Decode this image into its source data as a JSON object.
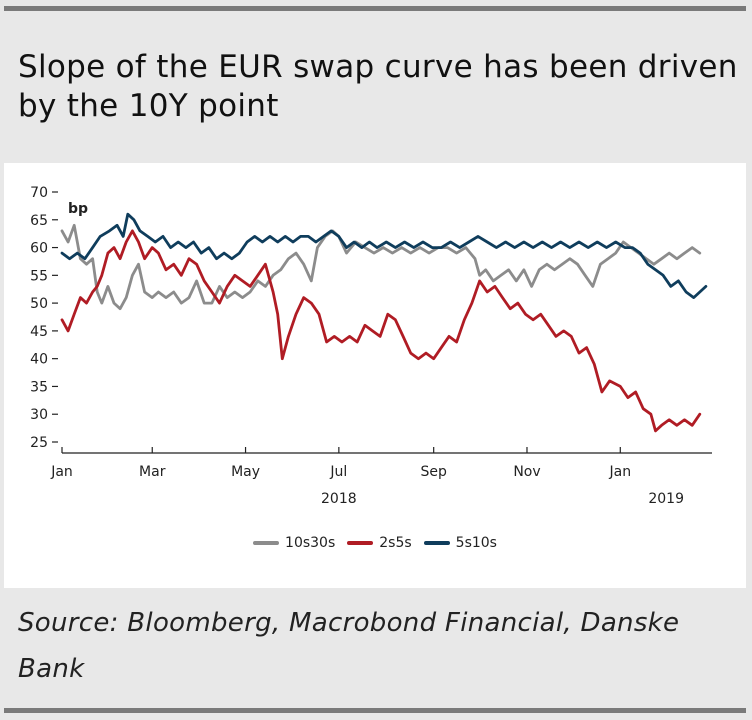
{
  "title": "Slope of the EUR swap curve has been driven by the 10Y point",
  "source": "Source: Bloomberg, Macrobond Financial, Danske Bank",
  "chart_data": {
    "type": "line",
    "ylabel": "bp",
    "ylim": [
      25,
      70
    ],
    "yticks": [
      70,
      65,
      60,
      55,
      50,
      45,
      40,
      35,
      30,
      25
    ],
    "xlim": [
      "2018-01-01",
      "2019-02-28"
    ],
    "xticks": [
      {
        "label": "Jan",
        "date": "2018-01-01"
      },
      {
        "label": "Mar",
        "date": "2018-03-01"
      },
      {
        "label": "May",
        "date": "2018-05-01"
      },
      {
        "label": "Jul",
        "date": "2018-07-01"
      },
      {
        "label": "Sep",
        "date": "2018-09-01"
      },
      {
        "label": "Nov",
        "date": "2018-11-01"
      },
      {
        "label": "Jan",
        "date": "2019-01-01"
      }
    ],
    "year_labels": [
      {
        "label": "2018",
        "date": "2018-07-01"
      },
      {
        "label": "2019",
        "date": "2019-01-31"
      }
    ],
    "grid": false,
    "legend_position": "bottom",
    "series": [
      {
        "name": "10s30s",
        "color": "#8c8c8c",
        "points": [
          [
            "2018-01-01",
            63
          ],
          [
            "2018-01-05",
            61
          ],
          [
            "2018-01-09",
            64
          ],
          [
            "2018-01-13",
            58
          ],
          [
            "2018-01-17",
            57
          ],
          [
            "2018-01-21",
            58
          ],
          [
            "2018-01-24",
            52
          ],
          [
            "2018-01-27",
            50
          ],
          [
            "2018-01-31",
            53
          ],
          [
            "2018-02-04",
            50
          ],
          [
            "2018-02-08",
            49
          ],
          [
            "2018-02-12",
            51
          ],
          [
            "2018-02-16",
            55
          ],
          [
            "2018-02-20",
            57
          ],
          [
            "2018-02-24",
            52
          ],
          [
            "2018-03-01",
            51
          ],
          [
            "2018-03-05",
            52
          ],
          [
            "2018-03-10",
            51
          ],
          [
            "2018-03-15",
            52
          ],
          [
            "2018-03-20",
            50
          ],
          [
            "2018-03-25",
            51
          ],
          [
            "2018-03-30",
            54
          ],
          [
            "2018-04-04",
            50
          ],
          [
            "2018-04-09",
            50
          ],
          [
            "2018-04-14",
            53
          ],
          [
            "2018-04-19",
            51
          ],
          [
            "2018-04-24",
            52
          ],
          [
            "2018-04-29",
            51
          ],
          [
            "2018-05-04",
            52
          ],
          [
            "2018-05-09",
            54
          ],
          [
            "2018-05-14",
            53
          ],
          [
            "2018-05-19",
            55
          ],
          [
            "2018-05-24",
            56
          ],
          [
            "2018-05-29",
            58
          ],
          [
            "2018-06-03",
            59
          ],
          [
            "2018-06-08",
            57
          ],
          [
            "2018-06-13",
            54
          ],
          [
            "2018-06-17",
            60
          ],
          [
            "2018-06-22",
            62
          ],
          [
            "2018-06-27",
            63
          ],
          [
            "2018-07-01",
            62
          ],
          [
            "2018-07-06",
            59
          ],
          [
            "2018-07-12",
            61
          ],
          [
            "2018-07-18",
            60
          ],
          [
            "2018-07-24",
            59
          ],
          [
            "2018-07-30",
            60
          ],
          [
            "2018-08-05",
            59
          ],
          [
            "2018-08-11",
            60
          ],
          [
            "2018-08-17",
            59
          ],
          [
            "2018-08-23",
            60
          ],
          [
            "2018-08-29",
            59
          ],
          [
            "2018-09-04",
            60
          ],
          [
            "2018-09-10",
            60
          ],
          [
            "2018-09-16",
            59
          ],
          [
            "2018-09-22",
            60
          ],
          [
            "2018-09-28",
            58
          ],
          [
            "2018-10-01",
            55
          ],
          [
            "2018-10-05",
            56
          ],
          [
            "2018-10-10",
            54
          ],
          [
            "2018-10-15",
            55
          ],
          [
            "2018-10-20",
            56
          ],
          [
            "2018-10-25",
            54
          ],
          [
            "2018-10-30",
            56
          ],
          [
            "2018-11-04",
            53
          ],
          [
            "2018-11-09",
            56
          ],
          [
            "2018-11-14",
            57
          ],
          [
            "2018-11-19",
            56
          ],
          [
            "2018-11-24",
            57
          ],
          [
            "2018-11-29",
            58
          ],
          [
            "2018-12-04",
            57
          ],
          [
            "2018-12-09",
            55
          ],
          [
            "2018-12-14",
            53
          ],
          [
            "2018-12-19",
            57
          ],
          [
            "2018-12-24",
            58
          ],
          [
            "2018-12-29",
            59
          ],
          [
            "2019-01-03",
            61
          ],
          [
            "2019-01-08",
            60
          ],
          [
            "2019-01-13",
            59
          ],
          [
            "2019-01-18",
            58
          ],
          [
            "2019-01-23",
            57
          ],
          [
            "2019-01-28",
            58
          ],
          [
            "2019-02-02",
            59
          ],
          [
            "2019-02-07",
            58
          ],
          [
            "2019-02-12",
            59
          ],
          [
            "2019-02-17",
            60
          ],
          [
            "2019-02-22",
            59
          ]
        ]
      },
      {
        "name": "2s5s",
        "color": "#b01c24",
        "points": [
          [
            "2018-01-01",
            47
          ],
          [
            "2018-01-05",
            45
          ],
          [
            "2018-01-09",
            48
          ],
          [
            "2018-01-13",
            51
          ],
          [
            "2018-01-17",
            50
          ],
          [
            "2018-01-21",
            52
          ],
          [
            "2018-01-24",
            53
          ],
          [
            "2018-01-27",
            55
          ],
          [
            "2018-01-31",
            59
          ],
          [
            "2018-02-04",
            60
          ],
          [
            "2018-02-08",
            58
          ],
          [
            "2018-02-12",
            61
          ],
          [
            "2018-02-16",
            63
          ],
          [
            "2018-02-20",
            61
          ],
          [
            "2018-02-24",
            58
          ],
          [
            "2018-03-01",
            60
          ],
          [
            "2018-03-05",
            59
          ],
          [
            "2018-03-10",
            56
          ],
          [
            "2018-03-15",
            57
          ],
          [
            "2018-03-20",
            55
          ],
          [
            "2018-03-25",
            58
          ],
          [
            "2018-03-30",
            57
          ],
          [
            "2018-04-04",
            54
          ],
          [
            "2018-04-09",
            52
          ],
          [
            "2018-04-14",
            50
          ],
          [
            "2018-04-19",
            53
          ],
          [
            "2018-04-24",
            55
          ],
          [
            "2018-04-29",
            54
          ],
          [
            "2018-05-04",
            53
          ],
          [
            "2018-05-09",
            55
          ],
          [
            "2018-05-14",
            57
          ],
          [
            "2018-05-19",
            52
          ],
          [
            "2018-05-22",
            48
          ],
          [
            "2018-05-25",
            40
          ],
          [
            "2018-05-29",
            44
          ],
          [
            "2018-06-03",
            48
          ],
          [
            "2018-06-08",
            51
          ],
          [
            "2018-06-13",
            50
          ],
          [
            "2018-06-18",
            48
          ],
          [
            "2018-06-23",
            43
          ],
          [
            "2018-06-28",
            44
          ],
          [
            "2018-07-03",
            43
          ],
          [
            "2018-07-08",
            44
          ],
          [
            "2018-07-13",
            43
          ],
          [
            "2018-07-18",
            46
          ],
          [
            "2018-07-23",
            45
          ],
          [
            "2018-07-28",
            44
          ],
          [
            "2018-08-02",
            48
          ],
          [
            "2018-08-07",
            47
          ],
          [
            "2018-08-12",
            44
          ],
          [
            "2018-08-17",
            41
          ],
          [
            "2018-08-22",
            40
          ],
          [
            "2018-08-27",
            41
          ],
          [
            "2018-09-01",
            40
          ],
          [
            "2018-09-06",
            42
          ],
          [
            "2018-09-11",
            44
          ],
          [
            "2018-09-16",
            43
          ],
          [
            "2018-09-21",
            47
          ],
          [
            "2018-09-26",
            50
          ],
          [
            "2018-10-01",
            54
          ],
          [
            "2018-10-06",
            52
          ],
          [
            "2018-10-11",
            53
          ],
          [
            "2018-10-16",
            51
          ],
          [
            "2018-10-21",
            49
          ],
          [
            "2018-10-26",
            50
          ],
          [
            "2018-10-31",
            48
          ],
          [
            "2018-11-05",
            47
          ],
          [
            "2018-11-10",
            48
          ],
          [
            "2018-11-15",
            46
          ],
          [
            "2018-11-20",
            44
          ],
          [
            "2018-11-25",
            45
          ],
          [
            "2018-11-30",
            44
          ],
          [
            "2018-12-05",
            41
          ],
          [
            "2018-12-10",
            42
          ],
          [
            "2018-12-15",
            39
          ],
          [
            "2018-12-20",
            34
          ],
          [
            "2018-12-25",
            36
          ],
          [
            "2019-01-01",
            35
          ],
          [
            "2019-01-06",
            33
          ],
          [
            "2019-01-11",
            34
          ],
          [
            "2019-01-16",
            31
          ],
          [
            "2019-01-21",
            30
          ],
          [
            "2019-01-24",
            27
          ],
          [
            "2019-01-28",
            28
          ],
          [
            "2019-02-02",
            29
          ],
          [
            "2019-02-07",
            28
          ],
          [
            "2019-02-12",
            29
          ],
          [
            "2019-02-17",
            28
          ],
          [
            "2019-02-22",
            30
          ]
        ]
      },
      {
        "name": "5s10s",
        "color": "#0f3d5c",
        "points": [
          [
            "2018-01-01",
            59
          ],
          [
            "2018-01-06",
            58
          ],
          [
            "2018-01-11",
            59
          ],
          [
            "2018-01-16",
            58
          ],
          [
            "2018-01-21",
            60
          ],
          [
            "2018-01-26",
            62
          ],
          [
            "2018-02-01",
            63
          ],
          [
            "2018-02-06",
            64
          ],
          [
            "2018-02-10",
            62
          ],
          [
            "2018-02-13",
            66
          ],
          [
            "2018-02-17",
            65
          ],
          [
            "2018-02-21",
            63
          ],
          [
            "2018-02-26",
            62
          ],
          [
            "2018-03-03",
            61
          ],
          [
            "2018-03-08",
            62
          ],
          [
            "2018-03-13",
            60
          ],
          [
            "2018-03-18",
            61
          ],
          [
            "2018-03-23",
            60
          ],
          [
            "2018-03-28",
            61
          ],
          [
            "2018-04-02",
            59
          ],
          [
            "2018-04-07",
            60
          ],
          [
            "2018-04-12",
            58
          ],
          [
            "2018-04-17",
            59
          ],
          [
            "2018-04-22",
            58
          ],
          [
            "2018-04-27",
            59
          ],
          [
            "2018-05-02",
            61
          ],
          [
            "2018-05-07",
            62
          ],
          [
            "2018-05-12",
            61
          ],
          [
            "2018-05-17",
            62
          ],
          [
            "2018-05-22",
            61
          ],
          [
            "2018-05-27",
            62
          ],
          [
            "2018-06-01",
            61
          ],
          [
            "2018-06-06",
            62
          ],
          [
            "2018-06-11",
            62
          ],
          [
            "2018-06-16",
            61
          ],
          [
            "2018-06-21",
            62
          ],
          [
            "2018-06-26",
            63
          ],
          [
            "2018-07-01",
            62
          ],
          [
            "2018-07-06",
            60
          ],
          [
            "2018-07-11",
            61
          ],
          [
            "2018-07-16",
            60
          ],
          [
            "2018-07-21",
            61
          ],
          [
            "2018-07-26",
            60
          ],
          [
            "2018-08-01",
            61
          ],
          [
            "2018-08-07",
            60
          ],
          [
            "2018-08-13",
            61
          ],
          [
            "2018-08-19",
            60
          ],
          [
            "2018-08-25",
            61
          ],
          [
            "2018-08-31",
            60
          ],
          [
            "2018-09-06",
            60
          ],
          [
            "2018-09-12",
            61
          ],
          [
            "2018-09-18",
            60
          ],
          [
            "2018-09-24",
            61
          ],
          [
            "2018-09-30",
            62
          ],
          [
            "2018-10-06",
            61
          ],
          [
            "2018-10-12",
            60
          ],
          [
            "2018-10-18",
            61
          ],
          [
            "2018-10-24",
            60
          ],
          [
            "2018-10-30",
            61
          ],
          [
            "2018-11-05",
            60
          ],
          [
            "2018-11-11",
            61
          ],
          [
            "2018-11-17",
            60
          ],
          [
            "2018-11-23",
            61
          ],
          [
            "2018-11-29",
            60
          ],
          [
            "2018-12-05",
            61
          ],
          [
            "2018-12-11",
            60
          ],
          [
            "2018-12-17",
            61
          ],
          [
            "2018-12-23",
            60
          ],
          [
            "2018-12-29",
            61
          ],
          [
            "2019-01-04",
            60
          ],
          [
            "2019-01-09",
            60
          ],
          [
            "2019-01-14",
            59
          ],
          [
            "2019-01-19",
            57
          ],
          [
            "2019-01-24",
            56
          ],
          [
            "2019-01-29",
            55
          ],
          [
            "2019-02-03",
            53
          ],
          [
            "2019-02-08",
            54
          ],
          [
            "2019-02-13",
            52
          ],
          [
            "2019-02-18",
            51
          ],
          [
            "2019-02-22",
            52
          ],
          [
            "2019-02-26",
            53
          ]
        ]
      }
    ]
  }
}
